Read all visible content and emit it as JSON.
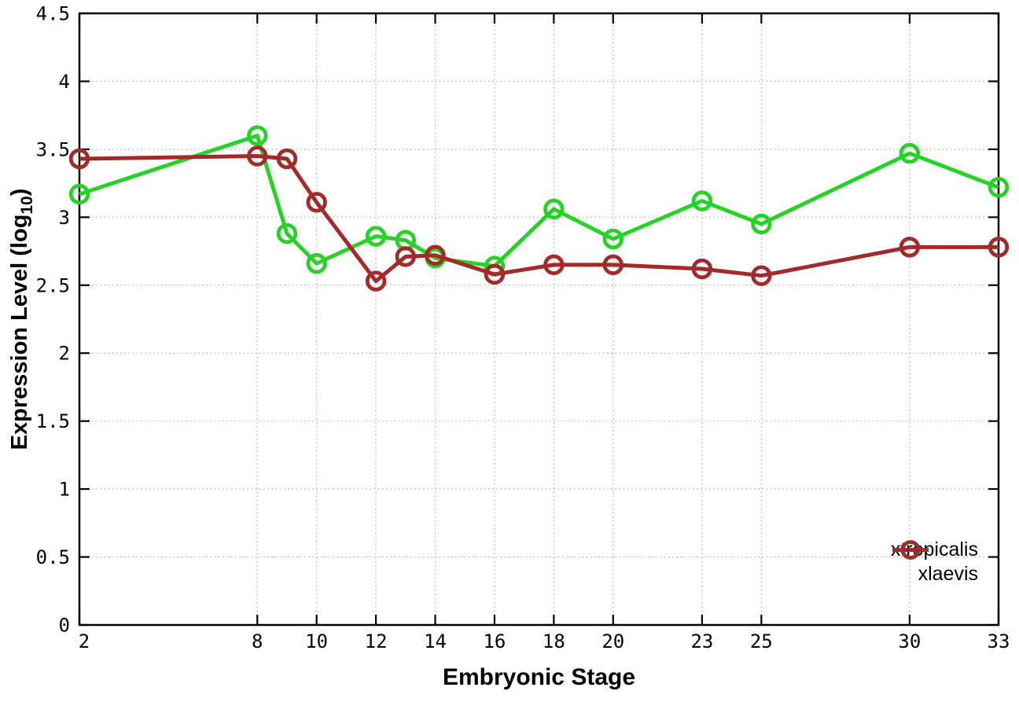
{
  "chart_data": {
    "type": "line",
    "title": "",
    "xlabel": "Embryonic Stage",
    "ylabel": "Expression Level (log10)",
    "ylabel_parts": {
      "prefix": "Expression Level (log",
      "sub": "10",
      "suffix": ")"
    },
    "x": [
      2,
      8,
      9,
      10,
      12,
      13,
      14,
      16,
      18,
      20,
      23,
      25,
      30,
      33
    ],
    "xlim": [
      2,
      33
    ],
    "ylim": [
      0,
      4.5
    ],
    "xtick_values": [
      2,
      8,
      10,
      12,
      14,
      16,
      18,
      20,
      23,
      25,
      30,
      33
    ],
    "xtick_labels": [
      "2",
      "8",
      "10",
      "12",
      "14",
      "16",
      "18",
      "20",
      "23",
      "25",
      "30",
      "33"
    ],
    "ytick_values": [
      0,
      0.5,
      1,
      1.5,
      2,
      2.5,
      3,
      3.5,
      4,
      4.5
    ],
    "ytick_labels": [
      "0",
      "0.5",
      "1",
      "1.5",
      "2",
      "2.5",
      "3",
      "3.5",
      "4",
      "4.5"
    ],
    "grid": "dotted",
    "legend_position": "bottom-right",
    "series": [
      {
        "name": "xtropicalis",
        "color": "#27d227",
        "marker": "open-circle",
        "values": [
          3.17,
          3.6,
          2.88,
          2.66,
          2.86,
          2.83,
          2.7,
          2.64,
          3.06,
          2.84,
          3.12,
          2.95,
          3.47,
          3.22
        ]
      },
      {
        "name": "xlaevis",
        "color": "#a42a2a",
        "marker": "open-circle",
        "values": [
          3.43,
          3.45,
          3.43,
          3.11,
          2.53,
          2.71,
          2.72,
          2.58,
          2.65,
          2.65,
          2.62,
          2.57,
          2.78,
          2.78
        ]
      }
    ],
    "colors": {
      "grid": "#b5b5b5",
      "border": "#000000",
      "background": "#ffffff",
      "text": "#000000"
    }
  }
}
